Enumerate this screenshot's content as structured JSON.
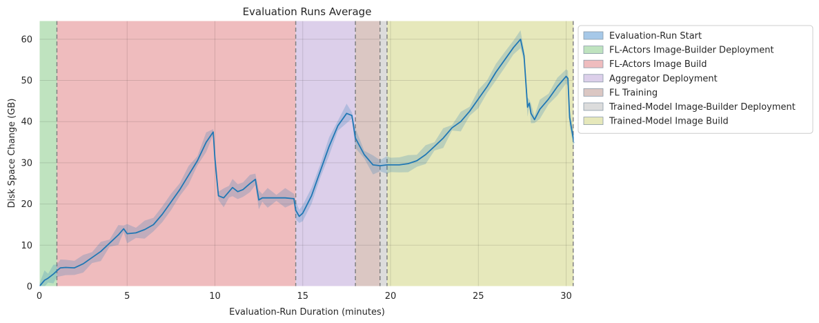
{
  "chart_data": {
    "type": "line",
    "title": "Evaluation Runs Average",
    "xlabel": "Evaluation-Run Duration (minutes)",
    "ylabel": "Disk Space Change (GB)",
    "xlim": [
      0,
      30.45
    ],
    "ylim": [
      0,
      64.5
    ],
    "xticks": [
      0,
      5,
      10,
      15,
      20,
      25,
      30
    ],
    "yticks": [
      0,
      10,
      20,
      30,
      40,
      50,
      60
    ],
    "grid": true,
    "legend_position": "outside-upper-right",
    "phases": [
      {
        "name": "Evaluation-Run Start",
        "start": 0,
        "end": 0,
        "color": "#a6c8e8"
      },
      {
        "name": "FL-Actors Image-Builder Deployment",
        "start": 0,
        "end": 1.0,
        "color": "#bfe3bf"
      },
      {
        "name": "FL-Actors Image Build",
        "start": 1.0,
        "end": 14.6,
        "color": "#efbcbe"
      },
      {
        "name": "Aggregator Deployment",
        "start": 14.6,
        "end": 18.0,
        "color": "#dccfea"
      },
      {
        "name": "FL Training",
        "start": 18.0,
        "end": 19.4,
        "color": "#dbc7c3"
      },
      {
        "name": "Trained-Model Image-Builder Deployment",
        "start": 19.4,
        "end": 19.8,
        "color": "#dcdcdc"
      },
      {
        "name": "Trained-Model Image Build",
        "start": 19.8,
        "end": 30.45,
        "color": "#e6e8bb"
      }
    ],
    "phase_boundaries": [
      1.0,
      14.6,
      18.0,
      19.4,
      19.8,
      30.4
    ],
    "series": [
      {
        "color": "#1f77b4",
        "x": [
          0,
          0.3,
          0.5,
          0.8,
          1.0,
          1.2,
          1.5,
          2.0,
          2.5,
          3.0,
          3.5,
          4.0,
          4.5,
          4.8,
          5.0,
          5.5,
          6.0,
          6.5,
          7.0,
          7.5,
          8.0,
          8.5,
          9.0,
          9.5,
          9.9,
          10.0,
          10.2,
          10.5,
          10.8,
          11.0,
          11.3,
          11.6,
          12.0,
          12.3,
          12.5,
          12.7,
          13.0,
          13.5,
          14.0,
          14.5,
          14.6,
          14.8,
          15.0,
          15.5,
          16.0,
          16.5,
          17.0,
          17.5,
          17.8,
          18.0,
          18.5,
          19.0,
          19.4,
          19.8,
          20.0,
          20.5,
          21.0,
          21.5,
          22.0,
          22.5,
          23.0,
          23.5,
          24.0,
          24.5,
          25.0,
          25.5,
          26.0,
          26.5,
          27.0,
          27.4,
          27.6,
          27.8,
          27.9,
          28.0,
          28.2,
          28.5,
          29.0,
          29.5,
          30.0,
          30.1,
          30.2,
          30.45
        ],
        "y": [
          0,
          1.5,
          2.0,
          3.0,
          3.8,
          4.5,
          4.6,
          4.5,
          5.5,
          7.0,
          8.5,
          10.5,
          12.5,
          14.0,
          12.8,
          13.0,
          13.8,
          15.0,
          17.5,
          20.5,
          23.5,
          27.0,
          30.5,
          35.0,
          37.5,
          31.0,
          22.0,
          21.5,
          23.0,
          24.0,
          23.0,
          23.5,
          25.0,
          26.0,
          21.0,
          21.5,
          21.5,
          21.5,
          21.5,
          21.3,
          18.5,
          17.0,
          17.8,
          22.0,
          28.0,
          34.0,
          39.0,
          42.0,
          41.5,
          36.0,
          32.0,
          29.5,
          29.3,
          29.5,
          29.5,
          29.5,
          29.8,
          30.5,
          32.0,
          34.0,
          36.0,
          38.5,
          40.0,
          42.5,
          45.5,
          48.5,
          52.0,
          55.0,
          58.0,
          60.0,
          56.0,
          43.5,
          44.5,
          42.0,
          40.5,
          43.0,
          45.5,
          48.5,
          51.0,
          50.5,
          41.0,
          34.8
        ]
      }
    ]
  }
}
